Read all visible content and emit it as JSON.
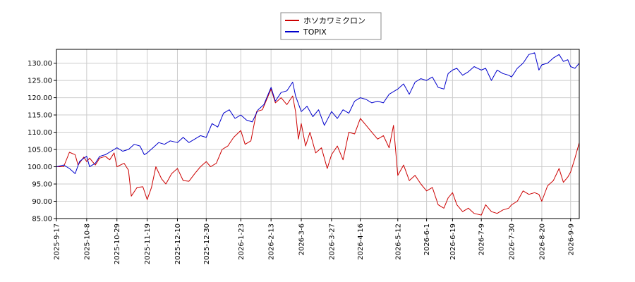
{
  "chart_data": {
    "type": "line",
    "title": "",
    "xlabel": "",
    "ylabel": "",
    "x_range": [
      "2025-09-17",
      "2026-09-15"
    ],
    "ylim": [
      85.0,
      134.0
    ],
    "grid": true,
    "legend_placement": "top-center",
    "x_ticks": [
      "2025-9-17",
      "2025-10-8",
      "2025-10-29",
      "2025-11-19",
      "2025-12-10",
      "2025-12-30",
      "2026-1-23",
      "2026-2-13",
      "2026-3-6",
      "2026-3-27",
      "2026-4-16",
      "2026-5-12",
      "2026-6-1",
      "2026-6-19",
      "2026-7-9",
      "2026-7-30",
      "2026-8-20",
      "2026-9-9"
    ],
    "y_ticks": [
      "85.00",
      "90.00",
      "95.00",
      "100.00",
      "105.00",
      "110.00",
      "115.00",
      "120.00",
      "125.00",
      "130.00"
    ],
    "series": [
      {
        "name": "ホソカワミクロン",
        "color": "#cc0000",
        "points": [
          [
            "2025-09-17",
            100.0
          ],
          [
            "2025-09-22",
            100.0
          ],
          [
            "2025-09-26",
            104.2
          ],
          [
            "2025-09-30",
            103.5
          ],
          [
            "2025-10-02",
            100.5
          ],
          [
            "2025-10-06",
            102.8
          ],
          [
            "2025-10-08",
            101.5
          ],
          [
            "2025-10-10",
            102.5
          ],
          [
            "2025-10-14",
            100.5
          ],
          [
            "2025-10-17",
            102.5
          ],
          [
            "2025-10-21",
            103.0
          ],
          [
            "2025-10-24",
            102.0
          ],
          [
            "2025-10-27",
            104.0
          ],
          [
            "2025-10-29",
            100.0
          ],
          [
            "2025-11-03",
            101.0
          ],
          [
            "2025-11-06",
            99.0
          ],
          [
            "2025-11-08",
            91.5
          ],
          [
            "2025-11-12",
            94.0
          ],
          [
            "2025-11-16",
            94.2
          ],
          [
            "2025-11-19",
            90.5
          ],
          [
            "2025-11-22",
            94.0
          ],
          [
            "2025-11-25",
            100.0
          ],
          [
            "2025-11-29",
            96.5
          ],
          [
            "2025-12-02",
            95.0
          ],
          [
            "2025-12-06",
            98.0
          ],
          [
            "2025-12-10",
            99.5
          ],
          [
            "2025-12-14",
            96.0
          ],
          [
            "2025-12-18",
            95.8
          ],
          [
            "2025-12-22",
            98.0
          ],
          [
            "2025-12-26",
            100.0
          ],
          [
            "2025-12-30",
            101.5
          ],
          [
            "2026-01-02",
            100.0
          ],
          [
            "2026-01-06",
            101.0
          ],
          [
            "2026-01-10",
            105.0
          ],
          [
            "2026-01-14",
            106.0
          ],
          [
            "2026-01-18",
            108.5
          ],
          [
            "2026-01-23",
            110.5
          ],
          [
            "2026-01-26",
            106.5
          ],
          [
            "2026-01-30",
            107.5
          ],
          [
            "2026-02-03",
            116.0
          ],
          [
            "2026-02-07",
            116.5
          ],
          [
            "2026-02-10",
            119.5
          ],
          [
            "2026-02-13",
            122.5
          ],
          [
            "2026-02-16",
            118.5
          ],
          [
            "2026-02-20",
            120.0
          ],
          [
            "2026-02-24",
            118.0
          ],
          [
            "2026-02-28",
            120.5
          ],
          [
            "2026-03-02",
            116.0
          ],
          [
            "2026-03-04",
            108.0
          ],
          [
            "2026-03-06",
            112.5
          ],
          [
            "2026-03-09",
            106.0
          ],
          [
            "2026-03-12",
            110.0
          ],
          [
            "2026-03-16",
            104.0
          ],
          [
            "2026-03-20",
            105.5
          ],
          [
            "2026-03-24",
            99.5
          ],
          [
            "2026-03-27",
            103.5
          ],
          [
            "2026-03-31",
            106.0
          ],
          [
            "2026-04-04",
            102.0
          ],
          [
            "2026-04-08",
            110.0
          ],
          [
            "2026-04-12",
            109.5
          ],
          [
            "2026-04-16",
            114.0
          ],
          [
            "2026-04-20",
            112.0
          ],
          [
            "2026-04-24",
            110.0
          ],
          [
            "2026-04-28",
            108.0
          ],
          [
            "2026-05-02",
            109.0
          ],
          [
            "2026-05-06",
            105.5
          ],
          [
            "2026-05-09",
            112.0
          ],
          [
            "2026-05-12",
            97.5
          ],
          [
            "2026-05-16",
            100.5
          ],
          [
            "2026-05-20",
            96.0
          ],
          [
            "2026-05-24",
            97.5
          ],
          [
            "2026-05-28",
            95.0
          ],
          [
            "2026-06-01",
            93.0
          ],
          [
            "2026-06-05",
            94.0
          ],
          [
            "2026-06-09",
            89.0
          ],
          [
            "2026-06-13",
            88.0
          ],
          [
            "2026-06-16",
            91.0
          ],
          [
            "2026-06-19",
            92.5
          ],
          [
            "2026-06-22",
            89.0
          ],
          [
            "2026-06-26",
            87.0
          ],
          [
            "2026-06-30",
            88.0
          ],
          [
            "2026-07-04",
            86.5
          ],
          [
            "2026-07-09",
            86.0
          ],
          [
            "2026-07-12",
            89.0
          ],
          [
            "2026-07-16",
            87.0
          ],
          [
            "2026-07-20",
            86.5
          ],
          [
            "2026-07-24",
            87.5
          ],
          [
            "2026-07-28",
            88.0
          ],
          [
            "2026-07-30",
            89.0
          ],
          [
            "2026-08-03",
            90.0
          ],
          [
            "2026-08-07",
            93.0
          ],
          [
            "2026-08-11",
            92.0
          ],
          [
            "2026-08-15",
            92.5
          ],
          [
            "2026-08-18",
            92.0
          ],
          [
            "2026-08-20",
            90.0
          ],
          [
            "2026-08-24",
            94.5
          ],
          [
            "2026-08-28",
            96.0
          ],
          [
            "2026-09-01",
            99.5
          ],
          [
            "2026-09-04",
            95.5
          ],
          [
            "2026-09-07",
            97.0
          ],
          [
            "2026-09-09",
            98.5
          ],
          [
            "2026-09-12",
            102.5
          ],
          [
            "2026-09-15",
            107.0
          ]
        ]
      },
      {
        "name": "TOPIX",
        "color": "#0000cc",
        "points": [
          [
            "2025-09-17",
            100.0
          ],
          [
            "2025-09-22",
            100.5
          ],
          [
            "2025-09-26",
            99.5
          ],
          [
            "2025-09-30",
            98.0
          ],
          [
            "2025-10-03",
            101.5
          ],
          [
            "2025-10-06",
            102.5
          ],
          [
            "2025-10-08",
            103.0
          ],
          [
            "2025-10-10",
            100.0
          ],
          [
            "2025-10-14",
            101.0
          ],
          [
            "2025-10-17",
            103.0
          ],
          [
            "2025-10-21",
            103.5
          ],
          [
            "2025-10-25",
            104.5
          ],
          [
            "2025-10-29",
            105.5
          ],
          [
            "2025-11-02",
            104.5
          ],
          [
            "2025-11-06",
            105.0
          ],
          [
            "2025-11-10",
            106.5
          ],
          [
            "2025-11-14",
            106.0
          ],
          [
            "2025-11-17",
            103.5
          ],
          [
            "2025-11-19",
            104.0
          ],
          [
            "2025-11-23",
            105.5
          ],
          [
            "2025-11-27",
            107.0
          ],
          [
            "2025-12-01",
            106.5
          ],
          [
            "2025-12-05",
            107.5
          ],
          [
            "2025-12-10",
            107.0
          ],
          [
            "2025-12-14",
            108.5
          ],
          [
            "2025-12-18",
            107.0
          ],
          [
            "2025-12-22",
            108.0
          ],
          [
            "2025-12-26",
            109.0
          ],
          [
            "2025-12-30",
            108.5
          ],
          [
            "2026-01-03",
            112.5
          ],
          [
            "2026-01-07",
            111.5
          ],
          [
            "2026-01-11",
            115.5
          ],
          [
            "2026-01-15",
            116.5
          ],
          [
            "2026-01-19",
            114.0
          ],
          [
            "2026-01-23",
            115.0
          ],
          [
            "2026-01-27",
            113.5
          ],
          [
            "2026-01-31",
            113.0
          ],
          [
            "2026-02-04",
            116.5
          ],
          [
            "2026-02-08",
            118.0
          ],
          [
            "2026-02-13",
            123.0
          ],
          [
            "2026-02-16",
            119.0
          ],
          [
            "2026-02-20",
            121.5
          ],
          [
            "2026-02-24",
            122.0
          ],
          [
            "2026-02-28",
            124.5
          ],
          [
            "2026-03-02",
            120.5
          ],
          [
            "2026-03-06",
            116.0
          ],
          [
            "2026-03-10",
            117.5
          ],
          [
            "2026-03-14",
            114.5
          ],
          [
            "2026-03-18",
            116.5
          ],
          [
            "2026-03-22",
            112.0
          ],
          [
            "2026-03-27",
            116.0
          ],
          [
            "2026-03-31",
            114.0
          ],
          [
            "2026-04-04",
            116.5
          ],
          [
            "2026-04-08",
            115.5
          ],
          [
            "2026-04-12",
            119.0
          ],
          [
            "2026-04-16",
            120.0
          ],
          [
            "2026-04-20",
            119.5
          ],
          [
            "2026-04-24",
            118.5
          ],
          [
            "2026-04-28",
            119.0
          ],
          [
            "2026-05-02",
            118.5
          ],
          [
            "2026-05-06",
            121.0
          ],
          [
            "2026-05-12",
            122.5
          ],
          [
            "2026-05-16",
            124.0
          ],
          [
            "2026-05-20",
            121.0
          ],
          [
            "2026-05-24",
            124.5
          ],
          [
            "2026-05-28",
            125.5
          ],
          [
            "2026-06-01",
            125.0
          ],
          [
            "2026-06-05",
            126.0
          ],
          [
            "2026-06-09",
            123.0
          ],
          [
            "2026-06-13",
            122.5
          ],
          [
            "2026-06-16",
            127.0
          ],
          [
            "2026-06-19",
            128.0
          ],
          [
            "2026-06-22",
            128.5
          ],
          [
            "2026-06-26",
            126.5
          ],
          [
            "2026-06-30",
            127.5
          ],
          [
            "2026-07-04",
            129.0
          ],
          [
            "2026-07-09",
            128.0
          ],
          [
            "2026-07-12",
            128.5
          ],
          [
            "2026-07-16",
            125.0
          ],
          [
            "2026-07-20",
            128.0
          ],
          [
            "2026-07-24",
            127.0
          ],
          [
            "2026-07-28",
            126.5
          ],
          [
            "2026-07-30",
            126.0
          ],
          [
            "2026-08-03",
            128.5
          ],
          [
            "2026-08-07",
            130.0
          ],
          [
            "2026-08-11",
            132.5
          ],
          [
            "2026-08-15",
            133.0
          ],
          [
            "2026-08-18",
            128.0
          ],
          [
            "2026-08-20",
            129.5
          ],
          [
            "2026-08-24",
            130.0
          ],
          [
            "2026-08-28",
            131.5
          ],
          [
            "2026-09-01",
            132.5
          ],
          [
            "2026-09-04",
            130.5
          ],
          [
            "2026-09-07",
            131.0
          ],
          [
            "2026-09-09",
            129.0
          ],
          [
            "2026-09-12",
            128.5
          ],
          [
            "2026-09-15",
            130.0
          ]
        ]
      }
    ]
  }
}
